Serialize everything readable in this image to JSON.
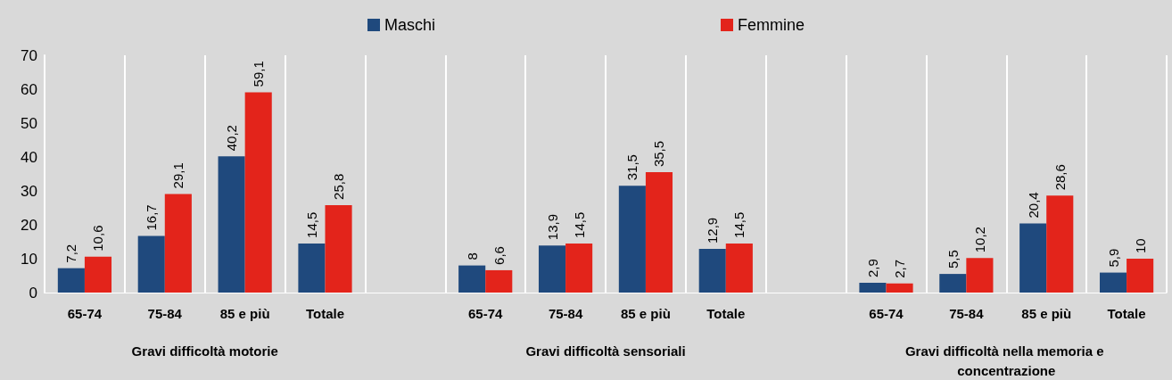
{
  "chart_data": {
    "type": "bar",
    "categories": [
      "65-74",
      "75-84",
      "85 e più",
      "Totale",
      null,
      "65-74",
      "75-84",
      "85 e più",
      "Totale",
      null,
      "65-74",
      "75-84",
      "85 e più",
      "Totale"
    ],
    "series": [
      {
        "name": "Maschi",
        "color": "#1f497d",
        "values": [
          7.2,
          16.7,
          40.2,
          14.5,
          null,
          8,
          13.9,
          31.5,
          12.9,
          null,
          2.9,
          5.5,
          20.4,
          5.9
        ],
        "value_labels": [
          "7,2",
          "16,7",
          "40,2",
          "14,5",
          null,
          "8",
          "13,9",
          "31,5",
          "12,9",
          null,
          "2,9",
          "5,5",
          "20,4",
          "5,9"
        ]
      },
      {
        "name": "Femmine",
        "color": "#e3241b",
        "values": [
          10.6,
          29.1,
          59.1,
          25.8,
          null,
          6.6,
          14.5,
          35.5,
          14.5,
          null,
          2.7,
          10.2,
          28.6,
          10
        ],
        "value_labels": [
          "10,6",
          "29,1",
          "59,1",
          "25,8",
          null,
          "6,6",
          "14,5",
          "35,5",
          "14,5",
          null,
          "2,7",
          "10,2",
          "28,6",
          "10"
        ]
      }
    ],
    "ylim": [
      0,
      70
    ],
    "yticks": [
      0,
      10,
      20,
      30,
      40,
      50,
      60,
      70
    ],
    "grid": "x",
    "legend": "top",
    "annotations": [
      "Gravi difficoltà motorie",
      "Gravi difficoltà sensoriali",
      "Gravi difficoltà nella memoria e concentrazione"
    ]
  }
}
